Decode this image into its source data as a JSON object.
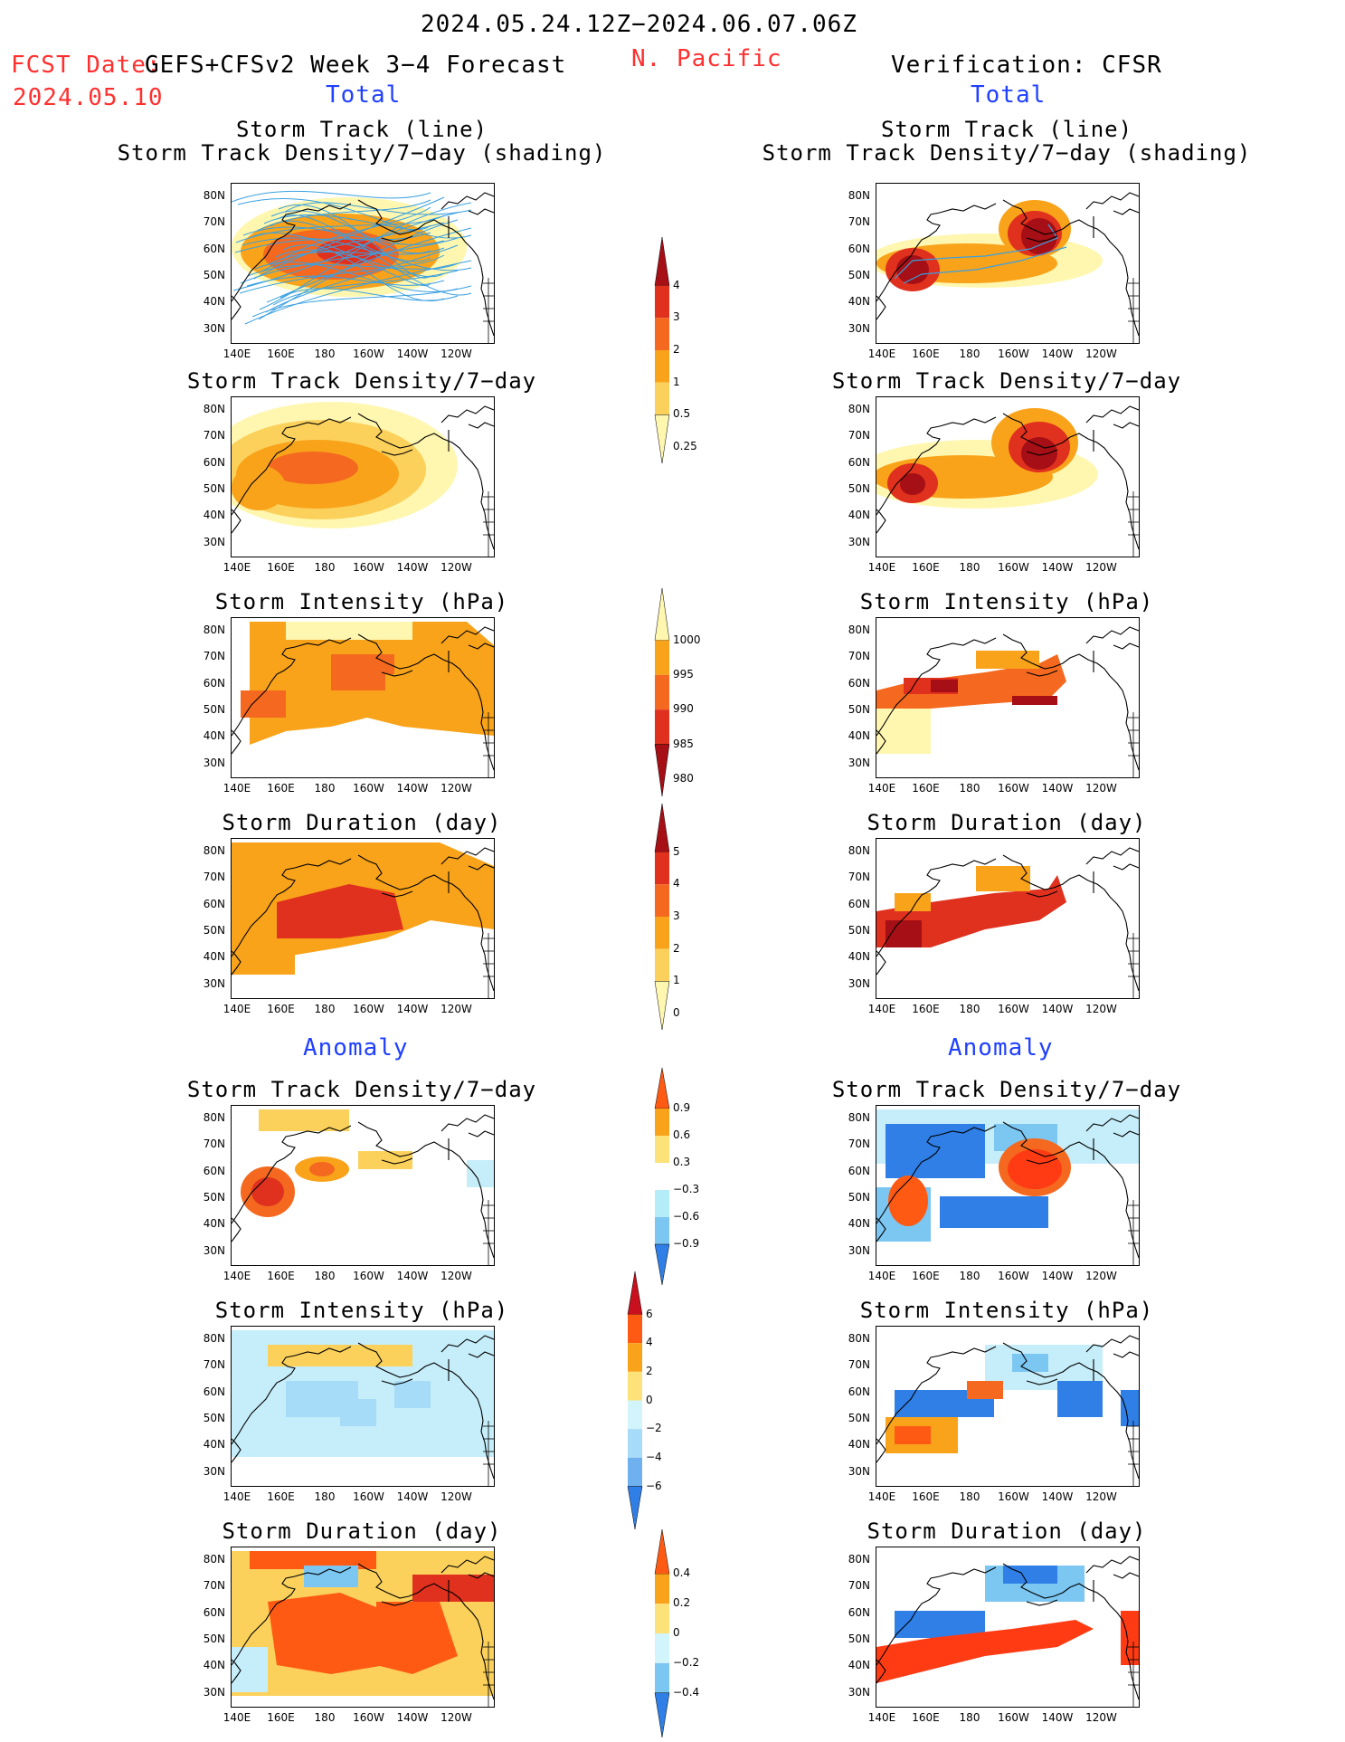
{
  "header": {
    "date_range": "2024.05.24.12Z−2024.06.07.06Z",
    "fcst_label": "FCST Date:",
    "fcst_model": "GEFS+CFSv2 Week 3−4 Forecast",
    "fcst_date": "2024.05.10",
    "region": "N. Pacific",
    "verification": "Verification: CFSR",
    "total_left": "Total",
    "total_right": "Total",
    "anomaly_left": "Anomaly",
    "anomaly_right": "Anomaly"
  },
  "axes": {
    "lat_labels": [
      "80N",
      "70N",
      "60N",
      "50N",
      "40N",
      "30N"
    ],
    "lon_labels": [
      "140E",
      "160E",
      "180",
      "160W",
      "140W",
      "120W"
    ]
  },
  "panels": {
    "left": [
      {
        "title": "Storm Track (line)\nStorm Track Density/7−day (shading)",
        "field": "track_forecast"
      },
      {
        "title": "Storm Track Density/7−day",
        "field": "density_forecast"
      },
      {
        "title": "Storm Intensity (hPa)",
        "field": "intensity_forecast"
      },
      {
        "title": "Storm Duration (day)",
        "field": "duration_forecast"
      },
      {
        "title": "Storm Track Density/7−day",
        "field": "density_anom_forecast"
      },
      {
        "title": "Storm Intensity (hPa)",
        "field": "intensity_anom_forecast"
      },
      {
        "title": "Storm Duration (day)",
        "field": "duration_anom_forecast"
      }
    ],
    "right": [
      {
        "title": "Storm Track (line)\nStorm Track Density/7−day (shading)",
        "field": "track_verif"
      },
      {
        "title": "Storm Track Density/7−day",
        "field": "density_verif"
      },
      {
        "title": "Storm Intensity (hPa)",
        "field": "intensity_verif"
      },
      {
        "title": "Storm Duration (day)",
        "field": "duration_verif"
      },
      {
        "title": "Storm Track Density/7−day",
        "field": "density_anom_verif"
      },
      {
        "title": "Storm Intensity (hPa)",
        "field": "intensity_anom_verif"
      },
      {
        "title": "Storm Duration (day)",
        "field": "duration_anom_verif"
      }
    ]
  },
  "colorbars": [
    {
      "name": "density",
      "labels": [
        "4",
        "3",
        "2",
        "1",
        "0.5",
        "0.25"
      ],
      "colors": [
        "#a50f15",
        "#e0301e",
        "#f4691f",
        "#f9a31a",
        "#fbd15c",
        "#fff7b0"
      ]
    },
    {
      "name": "intensity",
      "labels": [
        "1000",
        "995",
        "990",
        "985",
        "980"
      ],
      "colors": [
        "#fff7b0",
        "#f9a31a",
        "#f4691f",
        "#e0301e",
        "#a50f15"
      ]
    },
    {
      "name": "duration",
      "labels": [
        "5",
        "4",
        "3",
        "2",
        "1",
        "0"
      ],
      "colors": [
        "#a50f15",
        "#e0301e",
        "#f4691f",
        "#f9a31a",
        "#fbd15c",
        "#fff7b0"
      ]
    },
    {
      "name": "density_anom",
      "labels": [
        "0.9",
        "0.6",
        "0.3",
        "−0.3",
        "−0.6",
        "−0.9"
      ],
      "colors": [
        "#ff5a14",
        "#f9a31a",
        "#fde27a",
        "#ffffff",
        "#b4ecf8",
        "#7cc6f2",
        "#2f7fe6"
      ]
    },
    {
      "name": "intensity_anom",
      "labels": [
        "6",
        "4",
        "2",
        "0",
        "−2",
        "−4",
        "−6"
      ],
      "colors": [
        "#c8101e",
        "#ff5a14",
        "#f9a31a",
        "#fde27a",
        "#d2f4fb",
        "#a6dcf7",
        "#6fb0ee",
        "#2f7fe6"
      ]
    },
    {
      "name": "duration_anom",
      "labels": [
        "0.4",
        "0.2",
        "0",
        "−0.2",
        "−0.4"
      ],
      "colors": [
        "#ff5a14",
        "#f9a31a",
        "#fde27a",
        "#d2f4fb",
        "#7cc6f2",
        "#2f7fe6"
      ]
    }
  ],
  "palette": {
    "pale": "#fff7b0",
    "lightorange": "#fbd15c",
    "orange": "#f9a31a",
    "darkorange": "#f4691f",
    "red": "#e0301e",
    "darkred": "#a50f15",
    "blue": "#2f7fe6",
    "midblue": "#7cc6f2",
    "lightblue": "#c6eefa",
    "track": "#3aa0e0"
  }
}
